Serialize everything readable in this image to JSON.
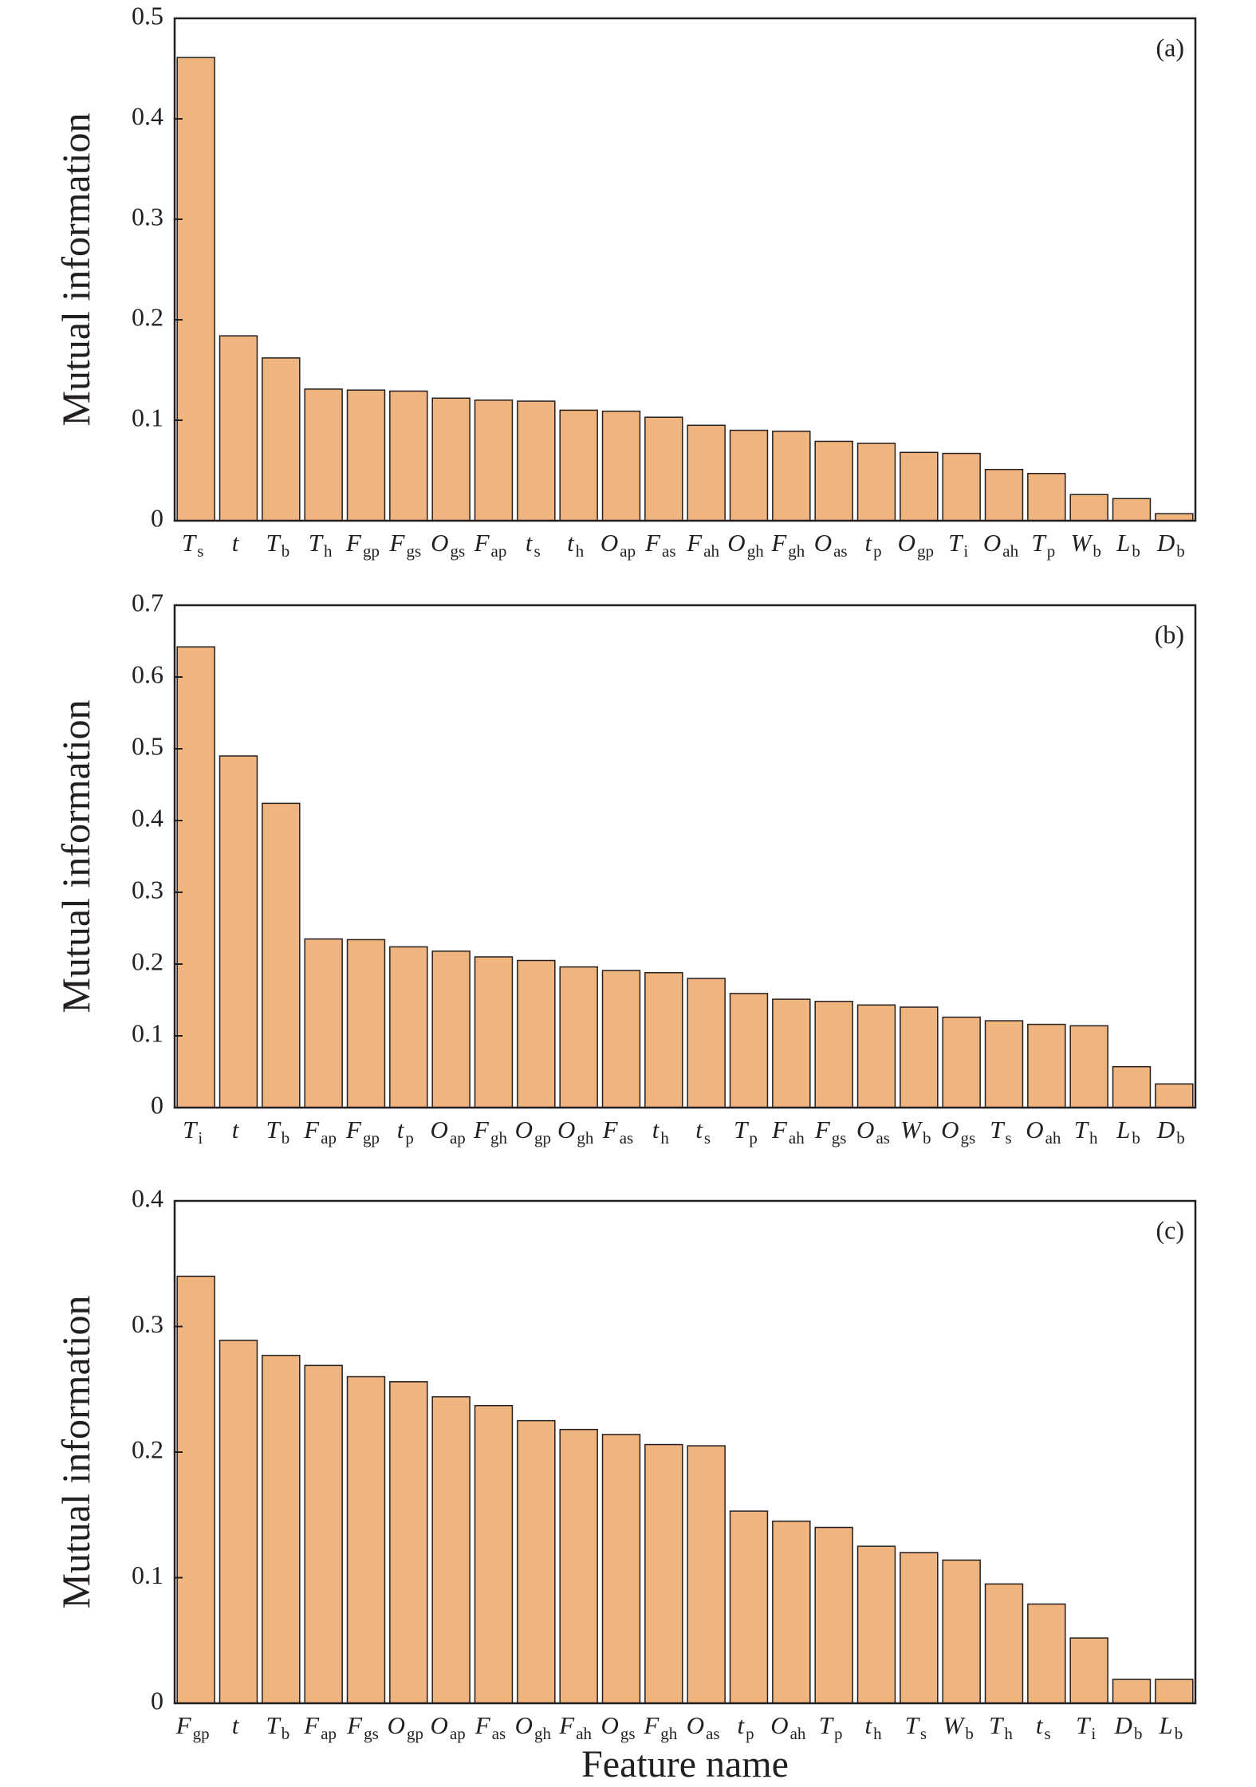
{
  "chart_data": [
    {
      "type": "bar",
      "annotation": "(a)",
      "y_label": "Mutual information",
      "color": "#f0b47f",
      "categories": [
        "Ts",
        "t",
        "Tb",
        "Th",
        "Fgp",
        "Fgs",
        "Ogs",
        "Fap",
        "ts",
        "th",
        "Oap",
        "Fas",
        "Fah",
        "Ogh",
        "Fgh",
        "Oas",
        "tp",
        "Ogp",
        "Ti",
        "Oah",
        "Tp",
        "Wb",
        "Lb",
        "Db"
      ],
      "values": [
        0.461,
        0.184,
        0.162,
        0.131,
        0.13,
        0.129,
        0.122,
        0.12,
        0.119,
        0.11,
        0.109,
        0.103,
        0.095,
        0.09,
        0.089,
        0.079,
        0.077,
        0.068,
        0.067,
        0.051,
        0.047,
        0.026,
        0.022,
        0.007
      ],
      "ylim": [
        0,
        0.5
      ],
      "yticks": [
        0,
        0.1,
        0.2,
        0.3,
        0.4,
        0.5
      ]
    },
    {
      "type": "bar",
      "annotation": "(b)",
      "y_label": "Mutual information",
      "color": "#f0b47f",
      "categories": [
        "Ti",
        "t",
        "Tb",
        "Fap",
        "Fgp",
        "tp",
        "Oap",
        "Fgh",
        "Ogp",
        "Ogh",
        "Fas",
        "th",
        "ts",
        "Tp",
        "Fah",
        "Fgs",
        "Oas",
        "Wb",
        "Ogs",
        "Ts",
        "Oah",
        "Th",
        "Lb",
        "Db"
      ],
      "values": [
        0.642,
        0.49,
        0.424,
        0.235,
        0.234,
        0.224,
        0.218,
        0.21,
        0.205,
        0.196,
        0.191,
        0.188,
        0.18,
        0.159,
        0.151,
        0.148,
        0.143,
        0.14,
        0.126,
        0.121,
        0.116,
        0.114,
        0.057,
        0.033
      ],
      "ylim": [
        0,
        0.7
      ],
      "yticks": [
        0,
        0.1,
        0.2,
        0.3,
        0.4,
        0.5,
        0.6,
        0.7
      ]
    },
    {
      "type": "bar",
      "annotation": "(c)",
      "y_label": "Mutual information",
      "x_label": "Feature name",
      "color": "#f0b47f",
      "categories": [
        "Fgp",
        "t",
        "Tb",
        "Fap",
        "Fgs",
        "Ogp",
        "Oap",
        "Fas",
        "Ogh",
        "Fah",
        "Ogs",
        "Fgh",
        "Oas",
        "tp",
        "Oah",
        "Tp",
        "th",
        "Ts",
        "Wb",
        "Th",
        "ts",
        "Ti",
        "Db",
        "Lb"
      ],
      "values": [
        0.34,
        0.289,
        0.277,
        0.269,
        0.26,
        0.256,
        0.244,
        0.237,
        0.225,
        0.218,
        0.214,
        0.206,
        0.205,
        0.153,
        0.145,
        0.14,
        0.125,
        0.12,
        0.114,
        0.095,
        0.079,
        0.052,
        0.019,
        0.019
      ],
      "ylim": [
        0,
        0.4
      ],
      "yticks": [
        0,
        0.1,
        0.2,
        0.3,
        0.4
      ]
    }
  ]
}
